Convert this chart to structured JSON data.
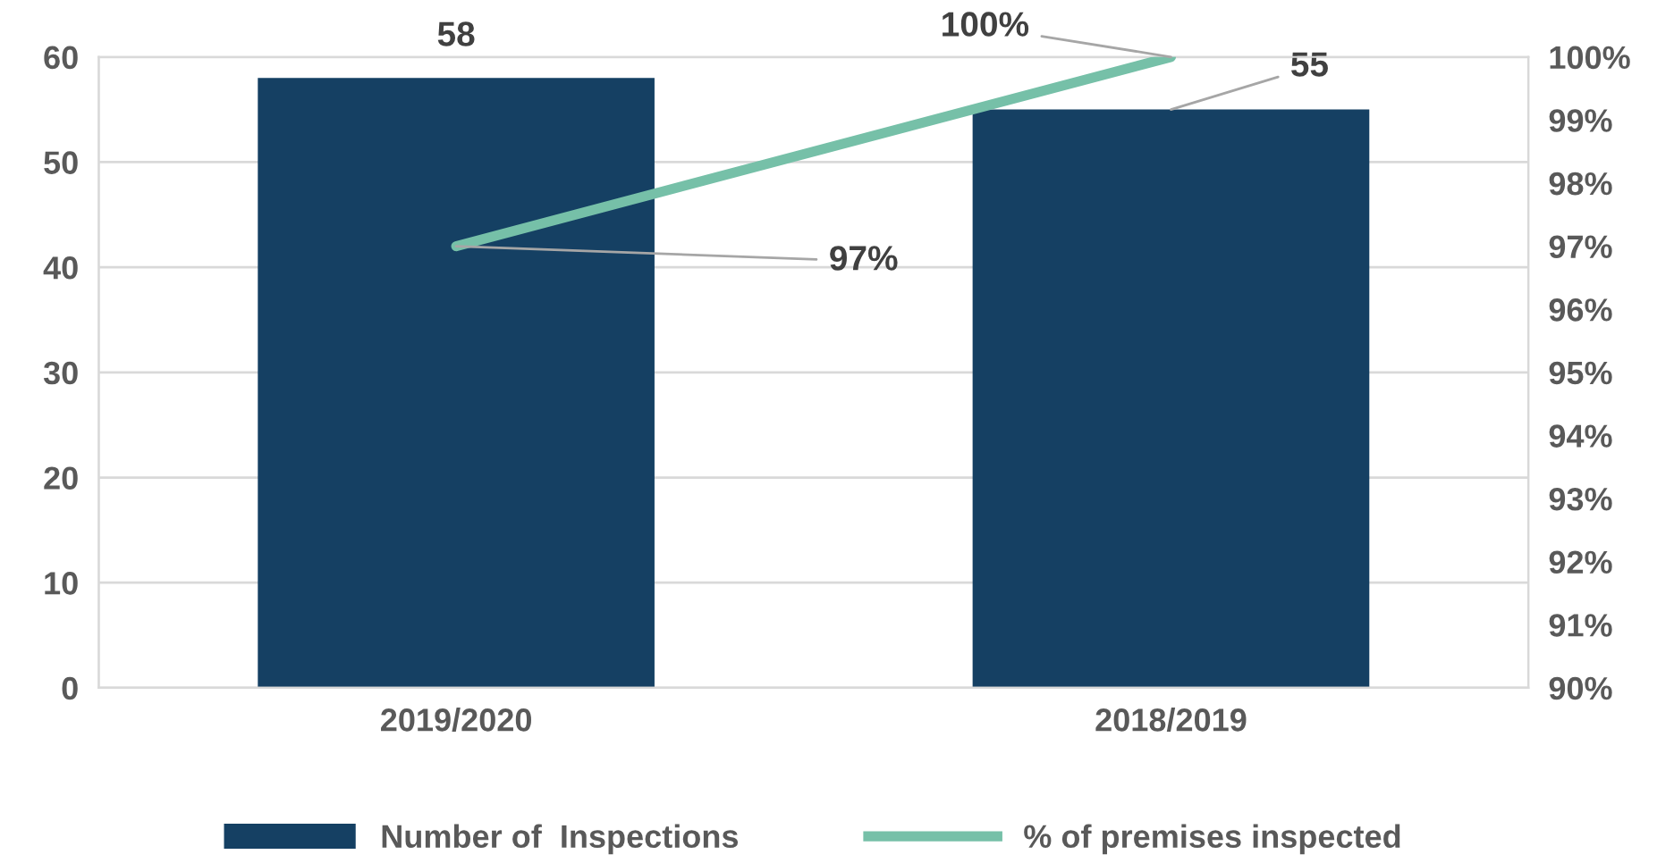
{
  "chart_data": {
    "type": "bar",
    "categories": [
      "2019/2020",
      "2018/2019"
    ],
    "series": [
      {
        "name": "Number of  Inspections",
        "color": "#154063",
        "values": [
          58,
          55
        ],
        "value_labels": [
          "58",
          "55"
        ]
      },
      {
        "name": "% of premises inspected",
        "type": "line",
        "axis": "y2",
        "color": "#76c0a8",
        "values": [
          97,
          100
        ],
        "value_labels": [
          "97%",
          "100%"
        ]
      }
    ],
    "ylim": [
      0,
      60
    ],
    "yticks": [
      0,
      10,
      20,
      30,
      40,
      50,
      60
    ],
    "y2lim": [
      90,
      100
    ],
    "y2ticks": [
      {
        "value": 90,
        "label": "90%"
      },
      {
        "value": 91,
        "label": "91%"
      },
      {
        "value": 92,
        "label": "92%"
      },
      {
        "value": 93,
        "label": "93%"
      },
      {
        "value": 94,
        "label": "94%"
      },
      {
        "value": 95,
        "label": "95%"
      },
      {
        "value": 96,
        "label": "96%"
      },
      {
        "value": 97,
        "label": "97%"
      },
      {
        "value": 98,
        "label": "98%"
      },
      {
        "value": 99,
        "label": "99%"
      },
      {
        "value": 100,
        "label": "100%"
      }
    ],
    "grid": "y",
    "legend": "bottom"
  }
}
